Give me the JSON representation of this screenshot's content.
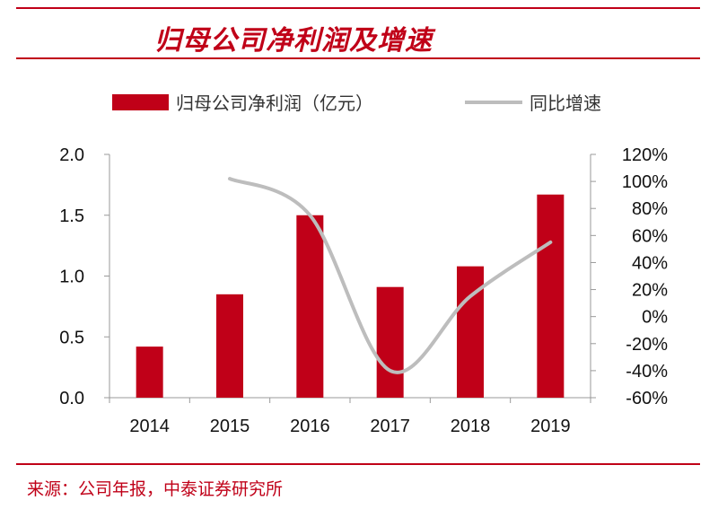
{
  "title": "归母公司净利润及增速",
  "source": "来源：公司年报，中泰证券研究所",
  "chart_data": {
    "type": "bar",
    "categories": [
      "2014",
      "2015",
      "2016",
      "2017",
      "2018",
      "2019"
    ],
    "series": [
      {
        "name": "归母公司净利润（亿元）",
        "type": "bar",
        "axis": "left",
        "values": [
          0.42,
          0.85,
          1.5,
          0.91,
          1.08,
          1.67
        ],
        "color": "#c00018"
      },
      {
        "name": "同比增速",
        "type": "line",
        "axis": "right",
        "values": [
          null,
          102,
          75,
          -40,
          15,
          55
        ],
        "color": "#bdbdbd"
      }
    ],
    "ylim": [
      0,
      2.0
    ],
    "y_ticks": [
      "0.0",
      "0.5",
      "1.0",
      "1.5",
      "2.0"
    ],
    "y2lim": [
      -60,
      120
    ],
    "y2_ticks": [
      "-60%",
      "-40%",
      "-20%",
      "0%",
      "20%",
      "40%",
      "60%",
      "80%",
      "100%",
      "120%"
    ],
    "legend_position": "top",
    "grid": false
  }
}
